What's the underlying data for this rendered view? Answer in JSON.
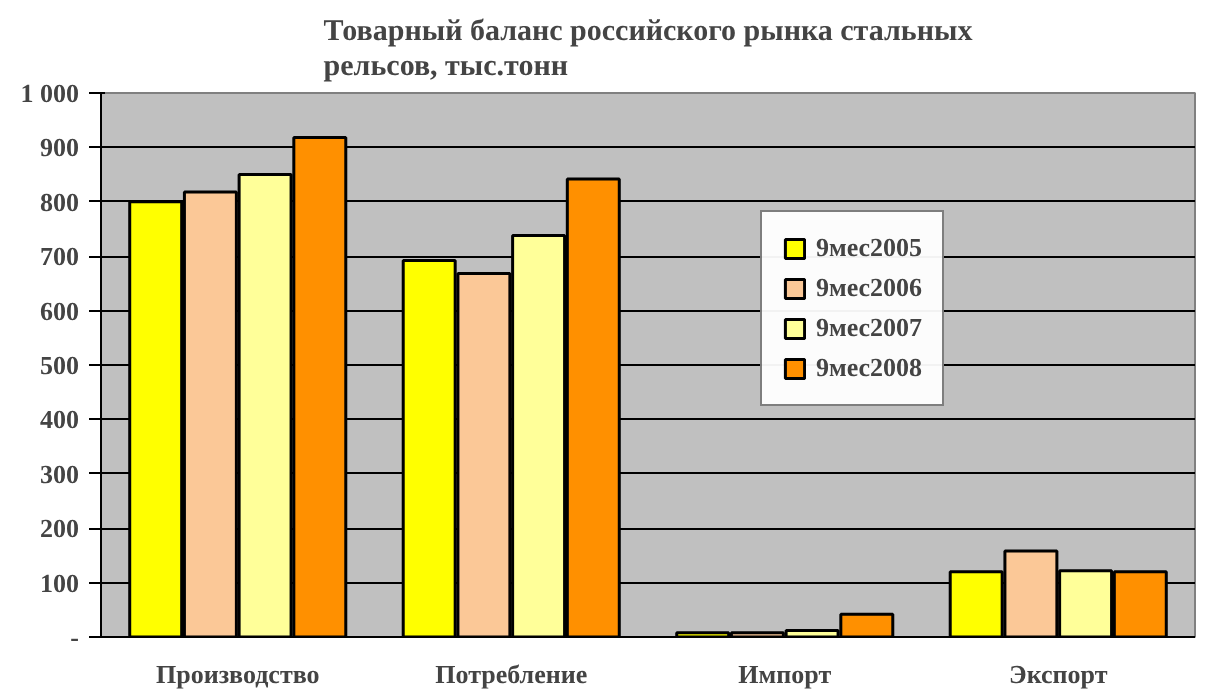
{
  "chart_data": {
    "type": "bar",
    "title": "Товарный баланс российского рынка стальных\nрельсов, тыс.тонн",
    "categories": [
      "Производство",
      "Потребление",
      "Импорт",
      "Экспорт"
    ],
    "series": [
      {
        "name": "9мес2005",
        "color": "#ffff00",
        "values": [
          800,
          692,
          8,
          120
        ]
      },
      {
        "name": "9мес2006",
        "color": "#fbc897",
        "values": [
          818,
          668,
          8,
          158
        ]
      },
      {
        "name": "9мес2007",
        "color": "#ffff99",
        "values": [
          850,
          738,
          12,
          122
        ]
      },
      {
        "name": "9мес2008",
        "color": "#ff9000",
        "values": [
          918,
          842,
          42,
          120
        ]
      }
    ],
    "ylim": [
      0,
      1000
    ],
    "yticks": [
      {
        "value": 0,
        "label": "-"
      },
      100,
      200,
      300,
      400,
      500,
      600,
      700,
      800,
      900,
      {
        "value": 1000,
        "label": "1 000"
      }
    ],
    "grid": "y",
    "legend": "top right"
  }
}
